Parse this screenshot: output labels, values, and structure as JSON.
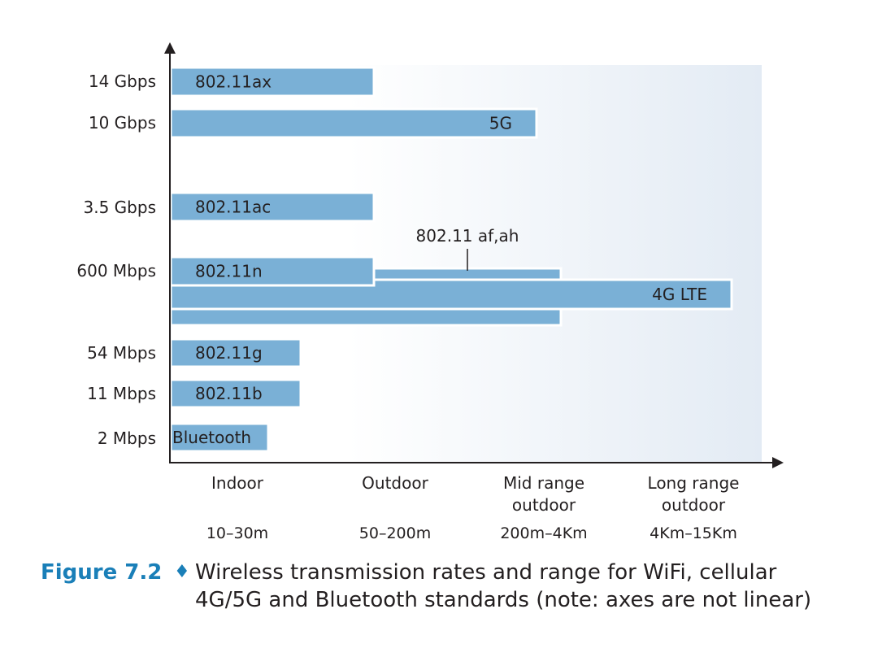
{
  "chart_data": {
    "type": "bar",
    "orientation": "horizontal",
    "note": "axes are not linear",
    "y_ticks": [
      "14 Gbps",
      "10 Gbps",
      "3.5 Gbps",
      "600 Mbps",
      "54 Mbps",
      "11 Mbps",
      "2 Mbps"
    ],
    "x_categories": [
      {
        "label": "Indoor",
        "range": "10–30m"
      },
      {
        "label": "Outdoor",
        "range": "50–200m"
      },
      {
        "label": "Mid range outdoor",
        "range": "200m–4Km"
      },
      {
        "label": "Long range outdoor",
        "range": "4Km–15Km"
      }
    ],
    "bars": [
      {
        "label": "802.11ax",
        "rate": "14 Gbps",
        "range_extent": 1.25
      },
      {
        "label": "5G",
        "rate": "10 Gbps",
        "range_extent": 2.25
      },
      {
        "label": "802.11ac",
        "rate": "3.5 Gbps",
        "range_extent": 1.25
      },
      {
        "label": "802.11n",
        "rate": "600 Mbps",
        "range_extent": 1.25
      },
      {
        "label": "802.11 af,ah",
        "rate": "600 Mbps",
        "range_extent": 2.4
      },
      {
        "label": "4G LTE",
        "rate": "600 Mbps",
        "range_extent": 3.45
      },
      {
        "label": "802.11g",
        "rate": "54 Mbps",
        "range_extent": 0.8
      },
      {
        "label": "802.11b",
        "rate": "11 Mbps",
        "range_extent": 0.8
      },
      {
        "label": "Bluetooth",
        "rate": "2 Mbps",
        "range_extent": 0.6
      }
    ],
    "colors": {
      "bar": "#7ab0d6",
      "bar_outline": "#ffffff",
      "background_gradient_end": "#e3ebf4",
      "axis": "#231f20"
    }
  },
  "caption": {
    "label": "Figure 7.2",
    "separator": "♦",
    "line1": "Wireless transmission rates and range for WiFi, cellular",
    "line2": "4G/5G and Bluetooth standards (note: axes are not linear)"
  }
}
